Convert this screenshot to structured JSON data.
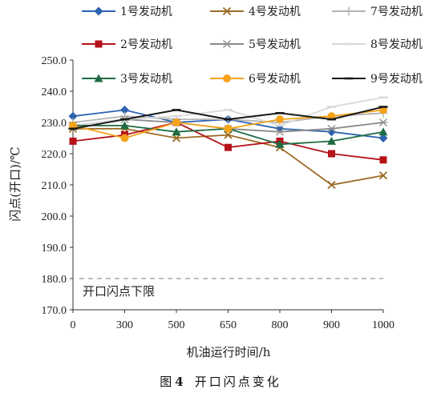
{
  "chart_data": {
    "type": "line",
    "caption_prefix": "图",
    "caption_number": "4",
    "caption_text": "开口闪点变化",
    "xlabel": "机油运行时间/h",
    "ylabel": "闪点(开口)/℃",
    "x": [
      "0",
      "300",
      "500",
      "650",
      "800",
      "900",
      "1000"
    ],
    "ylim": [
      170,
      250
    ],
    "yticks": [
      "170.0",
      "180.0",
      "190.0",
      "200.0",
      "210.0",
      "220.0",
      "230.0",
      "240.0",
      "250.0"
    ],
    "threshold": {
      "value": 180,
      "label": "开口闪点下限"
    },
    "series": [
      {
        "name": "1号发动机",
        "color": "#2b63b0",
        "marker": "diamond",
        "values": [
          232,
          234,
          230,
          231,
          228,
          227,
          225
        ]
      },
      {
        "name": "4号发动机",
        "color": "#9c6b26",
        "marker": "x",
        "values": [
          228,
          228,
          225,
          226,
          222,
          210,
          213
        ]
      },
      {
        "name": "7号发动机",
        "color": "#b3b3b3",
        "marker": "plus",
        "values": [
          230,
          232,
          231,
          231,
          230,
          232,
          233
        ]
      },
      {
        "name": "2号发动机",
        "color": "#b5121b",
        "marker": "square",
        "values": [
          224,
          226,
          230,
          222,
          224,
          220,
          218
        ]
      },
      {
        "name": "5号发动机",
        "color": "#8a8a8a",
        "marker": "star",
        "values": [
          229,
          231,
          230,
          228,
          227,
          228,
          230
        ]
      },
      {
        "name": "8号发动机",
        "color": "#d9d9d9",
        "marker": "dash",
        "values": [
          229,
          231,
          232,
          234,
          229,
          235,
          238
        ]
      },
      {
        "name": "3号发动机",
        "color": "#1e6b44",
        "marker": "triangle",
        "values": [
          229,
          229,
          227,
          228,
          223,
          224,
          227
        ]
      },
      {
        "name": "6号发动机",
        "color": "#f5a31a",
        "marker": "circle",
        "values": [
          229,
          225,
          230,
          228,
          231,
          232,
          234
        ]
      },
      {
        "name": "9号发动机",
        "color": "#1a1a1a",
        "marker": "dash",
        "values": [
          228,
          231,
          234,
          231,
          233,
          231,
          235
        ]
      }
    ]
  }
}
